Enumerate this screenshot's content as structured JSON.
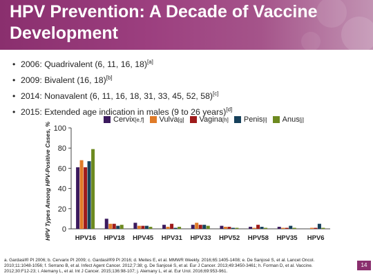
{
  "title": "HPV Prevention: A Decade of Vaccine Development",
  "bullets": [
    {
      "text": "2006: Quadrivalent (6, 11, 16, 18)",
      "sup": "[a]"
    },
    {
      "text": "2009: Bivalent (16, 18)",
      "sup": "[b]"
    },
    {
      "text": "2014: Nonavalent (6, 11, 16, 18, 31, 33, 45, 52, 58)",
      "sup": "[c]"
    },
    {
      "text": "2015: Extended age indication in males (9 to 26 years)",
      "sup": "[d]"
    }
  ],
  "chart_data": {
    "type": "bar",
    "ylabel": "HPV Types Among HPV-Positive Cases, %",
    "ylim": [
      0,
      100
    ],
    "yticks": [
      0,
      20,
      40,
      60,
      80,
      100
    ],
    "categories": [
      "HPV16",
      "HPV18",
      "HPV45",
      "HPV31",
      "HPV33",
      "HPV52",
      "HPV58",
      "HPV35",
      "HPV6"
    ],
    "series": [
      {
        "name": "Cervix",
        "sup": "[e,f]",
        "color": "#3b1a5e",
        "values": [
          61,
          10,
          6,
          4,
          4,
          3,
          2,
          2,
          0
        ]
      },
      {
        "name": "Vulva",
        "sup": "[g]",
        "color": "#e07b28",
        "values": [
          68,
          5,
          3,
          2,
          6,
          2,
          1,
          1,
          1
        ]
      },
      {
        "name": "Vagina",
        "sup": "[h]",
        "color": "#9e1b1b",
        "values": [
          61,
          5,
          3,
          5,
          4,
          2,
          4,
          1,
          1
        ]
      },
      {
        "name": "Penis",
        "sup": "[i]",
        "color": "#17415b",
        "values": [
          67,
          3,
          3,
          1,
          4,
          1,
          2,
          3,
          5
        ]
      },
      {
        "name": "Anus",
        "sup": "[j]",
        "color": "#6d8a20",
        "values": [
          79,
          4,
          2,
          2,
          3,
          1,
          1,
          1,
          1
        ]
      }
    ],
    "grid": false
  },
  "footer": {
    "line1": "a. Gardasil® PI 2006; b. Cervarix PI 2009; c. Gardasil®9 PI 2016; d. Meites E, et al. MMWR Weekly. 2016;65:1405-1408; e. De Sanjosé S, et al. Lancet Oncol.",
    "line2": "2010;11:1048-1056; f. Serrano B, et al. Infect Agent Cancer. 2012;7:38; g. De Sanjosé S, et al. Eur J Cancer. 2013;49:3450-3461; h. Forman D, et al. Vaccine.",
    "line3": "2012;30:F12-23; i. Alemany L, et al. Int J Cancer. 2015;136:98-107; j. Alemany L, et al. Eur Urol. 2016;69:953-961."
  },
  "page_number": "14"
}
